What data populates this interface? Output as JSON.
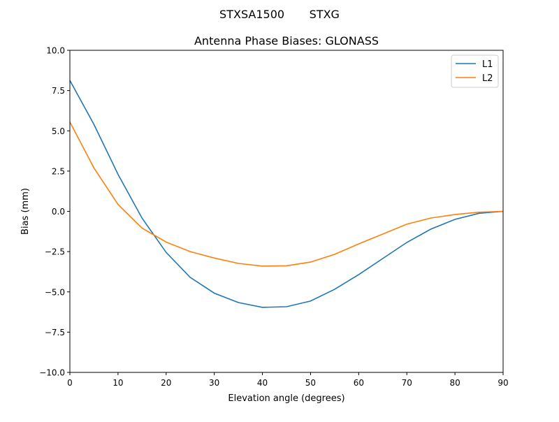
{
  "chart_data": {
    "type": "line",
    "suptitle": "STXSA1500       STXG",
    "title": "Antenna Phase Biases: GLONASS",
    "xlabel": "Elevation angle (degrees)",
    "ylabel": "Bias (mm)",
    "xlim": [
      0,
      90
    ],
    "ylim": [
      -10,
      10
    ],
    "xticks": [
      0,
      10,
      20,
      30,
      40,
      50,
      60,
      70,
      80,
      90
    ],
    "xtick_labels": [
      "0",
      "10",
      "20",
      "30",
      "40",
      "50",
      "60",
      "70",
      "80",
      "90"
    ],
    "yticks": [
      -10,
      -7.5,
      -5,
      -2.5,
      0,
      2.5,
      5,
      7.5,
      10
    ],
    "ytick_labels": [
      "−10.0",
      "−7.5",
      "−5.0",
      "−2.5",
      "0.0",
      "2.5",
      "5.0",
      "7.5",
      "10.0"
    ],
    "grid": false,
    "legend_position": "top-right",
    "x": [
      0,
      5,
      10,
      15,
      20,
      25,
      30,
      35,
      40,
      45,
      50,
      55,
      60,
      65,
      70,
      75,
      80,
      85,
      90
    ],
    "series": [
      {
        "name": "L1",
        "color": "#1f77b4",
        "values": [
          8.13,
          5.4,
          2.3,
          -0.42,
          -2.55,
          -4.1,
          -5.08,
          -5.66,
          -5.96,
          -5.92,
          -5.57,
          -4.84,
          -3.93,
          -2.93,
          -1.93,
          -1.1,
          -0.5,
          -0.12,
          0.0
        ]
      },
      {
        "name": "L2",
        "color": "#ff7f0e",
        "values": [
          5.55,
          2.7,
          0.43,
          -1.04,
          -1.91,
          -2.5,
          -2.9,
          -3.23,
          -3.4,
          -3.38,
          -3.15,
          -2.67,
          -2.02,
          -1.41,
          -0.8,
          -0.41,
          -0.2,
          -0.05,
          0.0
        ]
      }
    ]
  }
}
